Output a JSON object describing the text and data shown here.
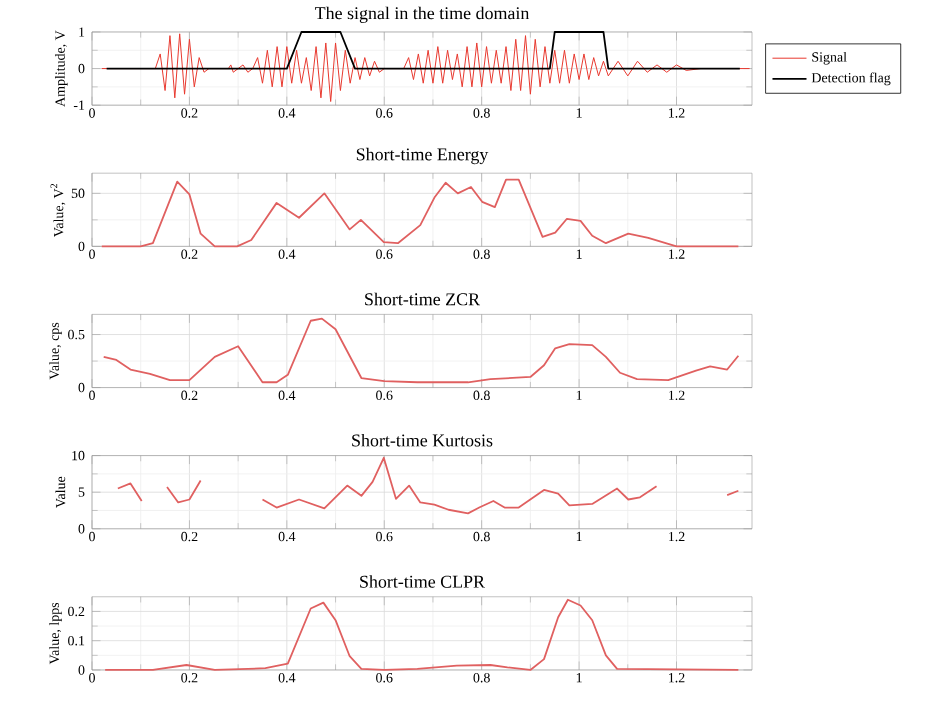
{
  "chart_data": [
    {
      "type": "line",
      "title": "The signal in the time domain",
      "ylabel": "Amplitude, V",
      "xlim": [
        0,
        1.355
      ],
      "xticks": [
        0,
        0.2,
        0.4,
        0.6,
        0.8,
        1,
        1.2
      ],
      "ylim": [
        -1,
        1
      ],
      "yticks": [
        -1,
        0,
        1
      ],
      "grid": true,
      "legend": "right",
      "series": [
        {
          "name": "Signal",
          "color": "#e8382e",
          "x": [
            0.02,
            0.13,
            0.14,
            0.15,
            0.16,
            0.17,
            0.18,
            0.19,
            0.2,
            0.21,
            0.22,
            0.23,
            0.24,
            0.28,
            0.285,
            0.29,
            0.3,
            0.31,
            0.32,
            0.33,
            0.34,
            0.35,
            0.36,
            0.37,
            0.38,
            0.39,
            0.4,
            0.41,
            0.42,
            0.43,
            0.44,
            0.45,
            0.46,
            0.47,
            0.48,
            0.49,
            0.5,
            0.51,
            0.52,
            0.53,
            0.54,
            0.55,
            0.56,
            0.57,
            0.58,
            0.59,
            0.6,
            0.64,
            0.65,
            0.66,
            0.67,
            0.68,
            0.69,
            0.7,
            0.71,
            0.72,
            0.73,
            0.74,
            0.75,
            0.76,
            0.77,
            0.78,
            0.79,
            0.8,
            0.81,
            0.82,
            0.83,
            0.84,
            0.85,
            0.86,
            0.87,
            0.88,
            0.89,
            0.9,
            0.91,
            0.92,
            0.93,
            0.94,
            0.95,
            0.96,
            0.97,
            0.98,
            0.99,
            1.0,
            1.01,
            1.02,
            1.03,
            1.04,
            1.05,
            1.06,
            1.08,
            1.1,
            1.12,
            1.14,
            1.16,
            1.18,
            1.2,
            1.22,
            1.25,
            1.35
          ],
          "values": [
            0,
            0,
            0.4,
            -0.6,
            0.9,
            -0.8,
            0.95,
            -0.7,
            0.8,
            -0.5,
            0.3,
            -0.1,
            0,
            0,
            0.1,
            -0.1,
            0,
            0.1,
            -0.1,
            0,
            0.3,
            -0.4,
            0.5,
            -0.5,
            0.6,
            -0.5,
            0.6,
            -0.4,
            0.5,
            -0.4,
            0.3,
            -0.6,
            0.6,
            -0.8,
            0.7,
            -0.9,
            0.7,
            -0.6,
            0.5,
            -0.4,
            0.3,
            -0.3,
            0.3,
            -0.2,
            0.2,
            -0.1,
            0,
            0,
            0.3,
            -0.3,
            0.4,
            -0.4,
            0.5,
            -0.4,
            0.6,
            -0.4,
            0.5,
            -0.3,
            0.4,
            -0.5,
            0.6,
            -0.5,
            0.7,
            -0.5,
            0.6,
            -0.4,
            0.5,
            -0.4,
            0.6,
            -0.6,
            0.8,
            -0.6,
            0.9,
            -0.7,
            0.8,
            -0.5,
            0.6,
            -0.4,
            0.5,
            -0.4,
            0.5,
            -0.4,
            0.4,
            -0.3,
            0.4,
            -0.3,
            0.3,
            -0.2,
            0.2,
            -0.2,
            0.2,
            -0.2,
            0.2,
            -0.1,
            0.1,
            -0.1,
            0.1,
            -0.05,
            0,
            0
          ]
        },
        {
          "name": "Detection flag",
          "color": "#000000",
          "x": [
            0.03,
            0.4,
            0.43,
            0.51,
            0.54,
            0.94,
            0.95,
            1.05,
            1.06,
            1.33
          ],
          "values": [
            0,
            0,
            1,
            1,
            0,
            0,
            1,
            1,
            0,
            0
          ]
        }
      ]
    },
    {
      "type": "line",
      "title": "Short-time Energy",
      "ylabel": "Value, V$^{2}$",
      "xlim": [
        0,
        1.355
      ],
      "xticks": [
        0,
        0.2,
        0.4,
        0.6,
        0.8,
        1,
        1.2
      ],
      "ylim": [
        0,
        69
      ],
      "yticks": [
        0,
        50
      ],
      "grid": true,
      "series": [
        {
          "color": "#e06060",
          "x": [
            0.02,
            0.1,
            0.125,
            0.175,
            0.2,
            0.223,
            0.252,
            0.298,
            0.327,
            0.379,
            0.425,
            0.477,
            0.529,
            0.552,
            0.599,
            0.628,
            0.674,
            0.703,
            0.726,
            0.751,
            0.778,
            0.801,
            0.827,
            0.85,
            0.876,
            0.925,
            0.951,
            0.975,
            1.003,
            1.027,
            1.055,
            1.101,
            1.142,
            1.2,
            1.327
          ],
          "values": [
            0,
            0,
            3,
            61,
            49,
            12,
            0,
            0,
            6,
            41,
            27,
            50,
            16,
            25,
            4,
            3,
            20,
            46,
            60,
            50,
            56,
            42,
            37,
            63,
            63,
            9,
            13,
            26,
            24,
            10,
            3,
            12,
            8,
            0,
            0
          ]
        }
      ]
    },
    {
      "type": "line",
      "title": "Short-time ZCR",
      "ylabel": "Value, cps",
      "xlim": [
        0,
        1.355
      ],
      "xticks": [
        0,
        0.2,
        0.4,
        0.6,
        0.8,
        1,
        1.2
      ],
      "ylim": [
        0,
        0.69
      ],
      "yticks": [
        0,
        0.5
      ],
      "grid": true,
      "series": [
        {
          "color": "#e06060",
          "x": [
            0.024,
            0.05,
            0.079,
            0.119,
            0.16,
            0.2,
            0.252,
            0.3,
            0.35,
            0.379,
            0.402,
            0.449,
            0.472,
            0.5,
            0.553,
            0.6,
            0.668,
            0.772,
            0.818,
            0.9,
            0.928,
            0.951,
            0.98,
            1.027,
            1.055,
            1.084,
            1.119,
            1.183,
            1.24,
            1.269,
            1.304,
            1.327
          ],
          "values": [
            0.29,
            0.26,
            0.17,
            0.13,
            0.07,
            0.07,
            0.29,
            0.39,
            0.05,
            0.05,
            0.12,
            0.63,
            0.65,
            0.55,
            0.09,
            0.06,
            0.05,
            0.05,
            0.08,
            0.1,
            0.21,
            0.37,
            0.41,
            0.4,
            0.29,
            0.14,
            0.08,
            0.07,
            0.16,
            0.2,
            0.17,
            0.3
          ]
        }
      ]
    },
    {
      "type": "line",
      "title": "Short-time Kurtosis",
      "ylabel": "Value",
      "xlim": [
        0,
        1.355
      ],
      "xticks": [
        0,
        0.2,
        0.4,
        0.6,
        0.8,
        1,
        1.2
      ],
      "ylim": [
        0,
        10
      ],
      "yticks": [
        0,
        5,
        10
      ],
      "grid": true,
      "series": [
        {
          "color": "#e06060",
          "x": [
            0.053,
            0.079,
            0.102,
            0.125,
            0.154,
            0.177,
            0.2,
            0.223,
            0.3,
            0.35,
            0.379,
            0.425,
            0.477,
            0.524,
            0.553,
            0.576,
            0.599,
            0.624,
            0.651,
            0.674,
            0.703,
            0.732,
            0.772,
            0.795,
            0.824,
            0.847,
            0.876,
            0.928,
            0.957,
            0.98,
            1.027,
            1.078,
            1.101,
            1.125,
            1.159,
            1.183,
            1.304,
            1.327
          ],
          "values": [
            5.5,
            6.2,
            3.8,
            null,
            5.7,
            3.6,
            4.0,
            6.6,
            null,
            4.0,
            2.9,
            4.0,
            2.8,
            5.9,
            4.5,
            6.4,
            9.7,
            4.1,
            5.9,
            3.6,
            3.3,
            2.6,
            2.1,
            2.9,
            3.8,
            2.9,
            2.9,
            5.3,
            4.8,
            3.2,
            3.4,
            5.5,
            4.0,
            4.3,
            5.8,
            null,
            4.6,
            5.2
          ]
        }
      ]
    },
    {
      "type": "line",
      "title": "Short-time CLPR",
      "ylabel": "Value, lpps",
      "xlim": [
        0,
        1.355
      ],
      "xticks": [
        0,
        0.2,
        0.4,
        0.6,
        0.8,
        1,
        1.2
      ],
      "ylim": [
        0,
        0.25
      ],
      "yticks": [
        0,
        0.1,
        0.2
      ],
      "grid": true,
      "series": [
        {
          "color": "#e06060",
          "x": [
            0.027,
            0.125,
            0.194,
            0.252,
            0.356,
            0.402,
            0.449,
            0.475,
            0.5,
            0.529,
            0.553,
            0.6,
            0.668,
            0.749,
            0.818,
            0.853,
            0.9,
            0.928,
            0.957,
            0.977,
            1.003,
            1.027,
            1.055,
            1.078,
            1.327
          ],
          "values": [
            0,
            0,
            0.017,
            0,
            0.006,
            0.022,
            0.21,
            0.23,
            0.17,
            0.047,
            0.004,
            0,
            0.004,
            0.015,
            0.017,
            0.009,
            0,
            0.037,
            0.18,
            0.24,
            0.22,
            0.17,
            0.05,
            0.004,
            0
          ]
        }
      ]
    }
  ]
}
